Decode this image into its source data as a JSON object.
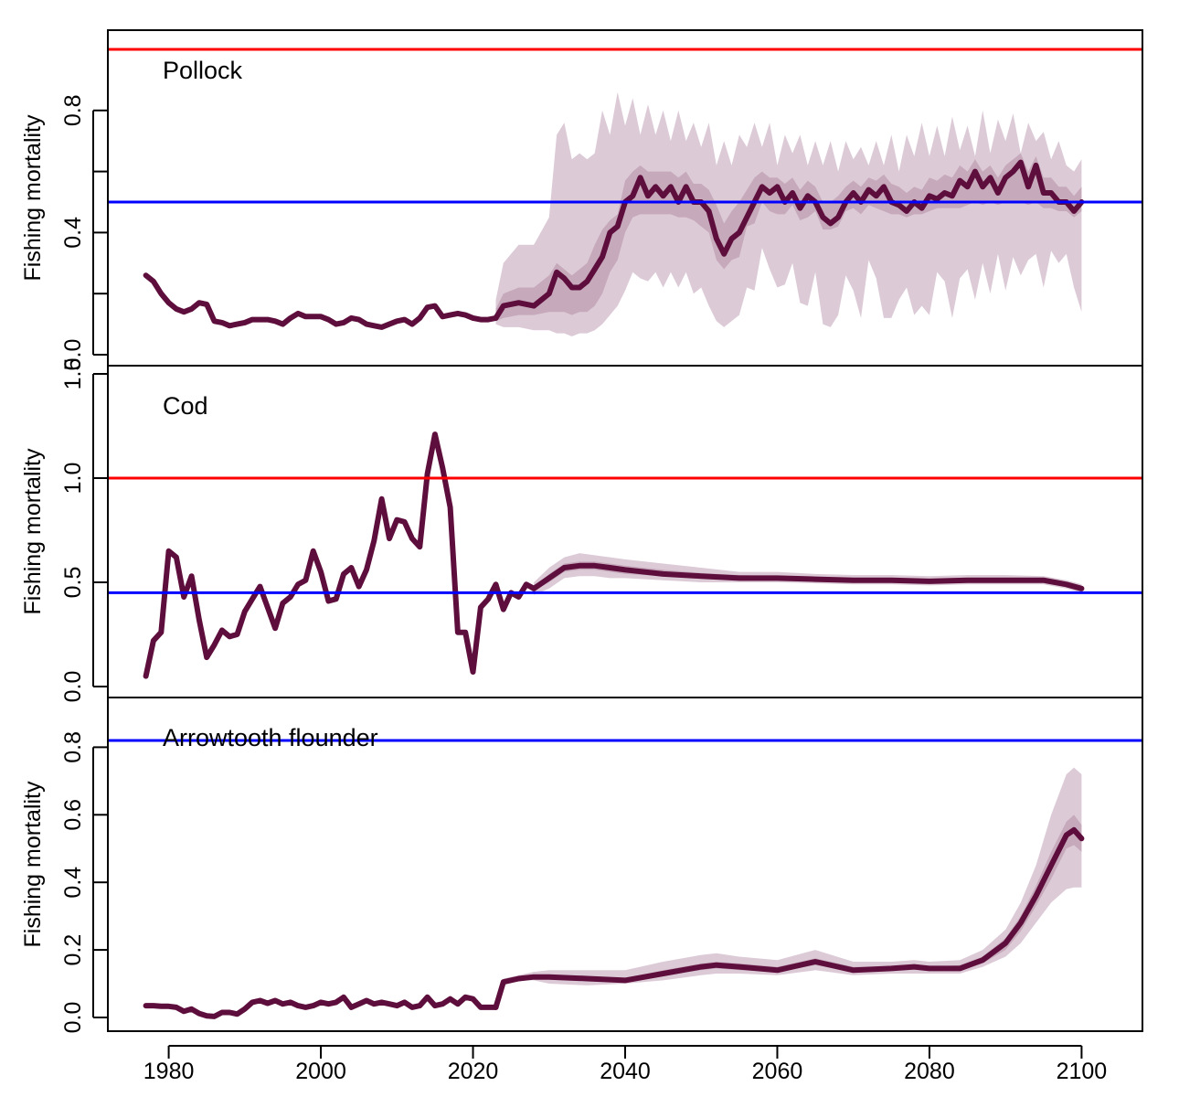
{
  "colors": {
    "median": "#5e0e3c",
    "band_outer": "#dccbd7",
    "band_mid": "#c7a9bc",
    "band_inner": "#9c6a86",
    "limit_red": "#ff0000",
    "limit_blue": "#0000ff"
  },
  "chart_data": [
    {
      "type": "line",
      "panel_label": "Pollock",
      "ylabel": "Fishing mortality",
      "ylim": [
        0.0,
        1.0
      ],
      "yticks": [
        0.0,
        0.2,
        0.4,
        0.6,
        0.8
      ],
      "ytick_labels": [
        "0.0",
        "",
        "0.4",
        "",
        "0.8"
      ],
      "hlines": [
        {
          "y": 1.0,
          "color": "red"
        },
        {
          "y": 0.5,
          "color": "blue"
        }
      ],
      "history": {
        "x": [
          1977,
          1978,
          1979,
          1980,
          1981,
          1982,
          1983,
          1984,
          1985,
          1986,
          1987,
          1988,
          1989,
          1990,
          1991,
          1992,
          1993,
          1994,
          1995,
          1996,
          1997,
          1998,
          1999,
          2000,
          2001,
          2002,
          2003,
          2004,
          2005,
          2006,
          2007,
          2008,
          2009,
          2010,
          2011,
          2012,
          2013,
          2014,
          2015,
          2016,
          2017,
          2018,
          2019,
          2020,
          2021,
          2022,
          2023
        ],
        "y": [
          0.26,
          0.24,
          0.2,
          0.17,
          0.15,
          0.14,
          0.15,
          0.17,
          0.165,
          0.11,
          0.105,
          0.095,
          0.1,
          0.105,
          0.115,
          0.115,
          0.115,
          0.11,
          0.1,
          0.12,
          0.135,
          0.125,
          0.125,
          0.125,
          0.115,
          0.1,
          0.105,
          0.12,
          0.115,
          0.1,
          0.095,
          0.09,
          0.1,
          0.11,
          0.115,
          0.1,
          0.12,
          0.155,
          0.16,
          0.125,
          0.13,
          0.135,
          0.13,
          0.12,
          0.115,
          0.115,
          0.12
        ]
      },
      "projection": {
        "x": [
          2023,
          2024,
          2026,
          2028,
          2030,
          2031,
          2032,
          2033,
          2034,
          2035,
          2036,
          2037,
          2038,
          2039,
          2040,
          2041,
          2042,
          2043,
          2044,
          2045,
          2046,
          2047,
          2048,
          2049,
          2050,
          2051,
          2052,
          2053,
          2054,
          2055,
          2056,
          2057,
          2058,
          2059,
          2060,
          2061,
          2062,
          2063,
          2064,
          2065,
          2066,
          2067,
          2068,
          2069,
          2070,
          2071,
          2072,
          2073,
          2074,
          2075,
          2076,
          2077,
          2078,
          2079,
          2080,
          2081,
          2082,
          2083,
          2084,
          2085,
          2086,
          2087,
          2088,
          2089,
          2090,
          2091,
          2092,
          2093,
          2094,
          2095,
          2096,
          2097,
          2098,
          2099,
          2100
        ],
        "median": [
          0.12,
          0.16,
          0.17,
          0.16,
          0.2,
          0.27,
          0.25,
          0.22,
          0.22,
          0.24,
          0.28,
          0.32,
          0.4,
          0.42,
          0.5,
          0.52,
          0.58,
          0.52,
          0.55,
          0.52,
          0.55,
          0.5,
          0.55,
          0.5,
          0.5,
          0.47,
          0.38,
          0.33,
          0.38,
          0.4,
          0.45,
          0.5,
          0.55,
          0.53,
          0.55,
          0.5,
          0.53,
          0.48,
          0.52,
          0.5,
          0.45,
          0.43,
          0.45,
          0.5,
          0.53,
          0.5,
          0.54,
          0.52,
          0.55,
          0.5,
          0.49,
          0.47,
          0.5,
          0.48,
          0.52,
          0.51,
          0.53,
          0.52,
          0.57,
          0.55,
          0.6,
          0.55,
          0.58,
          0.53,
          0.58,
          0.6,
          0.63,
          0.55,
          0.62,
          0.53,
          0.53,
          0.5,
          0.5,
          0.47,
          0.5
        ],
        "p25": [
          0.11,
          0.12,
          0.13,
          0.13,
          0.14,
          0.14,
          0.14,
          0.13,
          0.14,
          0.14,
          0.16,
          0.2,
          0.27,
          0.31,
          0.4,
          0.45,
          0.46,
          0.46,
          0.46,
          0.46,
          0.46,
          0.45,
          0.45,
          0.44,
          0.42,
          0.4,
          0.31,
          0.28,
          0.31,
          0.32,
          0.42,
          0.43,
          0.5,
          0.47,
          0.46,
          0.46,
          0.49,
          0.44,
          0.45,
          0.47,
          0.41,
          0.41,
          0.42,
          0.47,
          0.48,
          0.46,
          0.49,
          0.48,
          0.47,
          0.46,
          0.46,
          0.45,
          0.46,
          0.46,
          0.47,
          0.48,
          0.48,
          0.48,
          0.48,
          0.49,
          0.5,
          0.49,
          0.5,
          0.49,
          0.5,
          0.5,
          0.5,
          0.49,
          0.5,
          0.48,
          0.48,
          0.47,
          0.47,
          0.45,
          0.47
        ],
        "p75": [
          0.15,
          0.2,
          0.22,
          0.22,
          0.26,
          0.3,
          0.28,
          0.26,
          0.28,
          0.3,
          0.36,
          0.41,
          0.44,
          0.46,
          0.57,
          0.6,
          0.62,
          0.6,
          0.6,
          0.6,
          0.6,
          0.58,
          0.6,
          0.56,
          0.56,
          0.54,
          0.49,
          0.43,
          0.47,
          0.5,
          0.54,
          0.58,
          0.6,
          0.58,
          0.58,
          0.56,
          0.58,
          0.54,
          0.57,
          0.55,
          0.5,
          0.5,
          0.52,
          0.55,
          0.57,
          0.55,
          0.58,
          0.57,
          0.59,
          0.56,
          0.55,
          0.53,
          0.55,
          0.54,
          0.58,
          0.57,
          0.59,
          0.58,
          0.62,
          0.6,
          0.64,
          0.6,
          0.62,
          0.58,
          0.62,
          0.64,
          0.66,
          0.6,
          0.65,
          0.58,
          0.58,
          0.55,
          0.55,
          0.52,
          0.55
        ],
        "p05": [
          0.1,
          0.09,
          0.09,
          0.08,
          0.08,
          0.07,
          0.07,
          0.06,
          0.07,
          0.07,
          0.08,
          0.1,
          0.13,
          0.16,
          0.21,
          0.27,
          0.25,
          0.24,
          0.27,
          0.22,
          0.27,
          0.22,
          0.27,
          0.2,
          0.22,
          0.16,
          0.11,
          0.09,
          0.11,
          0.13,
          0.22,
          0.21,
          0.35,
          0.28,
          0.22,
          0.23,
          0.3,
          0.17,
          0.16,
          0.27,
          0.1,
          0.09,
          0.13,
          0.26,
          0.21,
          0.12,
          0.31,
          0.25,
          0.12,
          0.12,
          0.18,
          0.22,
          0.13,
          0.16,
          0.13,
          0.27,
          0.24,
          0.12,
          0.25,
          0.28,
          0.18,
          0.3,
          0.2,
          0.33,
          0.21,
          0.32,
          0.26,
          0.31,
          0.33,
          0.22,
          0.34,
          0.3,
          0.33,
          0.22,
          0.14
        ],
        "p95": [
          0.18,
          0.3,
          0.36,
          0.36,
          0.45,
          0.72,
          0.76,
          0.64,
          0.66,
          0.64,
          0.66,
          0.8,
          0.72,
          0.86,
          0.75,
          0.84,
          0.72,
          0.82,
          0.72,
          0.8,
          0.7,
          0.8,
          0.7,
          0.76,
          0.68,
          0.76,
          0.62,
          0.7,
          0.62,
          0.72,
          0.68,
          0.76,
          0.68,
          0.76,
          0.62,
          0.72,
          0.66,
          0.72,
          0.62,
          0.7,
          0.62,
          0.7,
          0.6,
          0.7,
          0.64,
          0.68,
          0.62,
          0.7,
          0.62,
          0.72,
          0.6,
          0.72,
          0.65,
          0.76,
          0.65,
          0.75,
          0.65,
          0.78,
          0.67,
          0.75,
          0.65,
          0.8,
          0.66,
          0.77,
          0.7,
          0.79,
          0.66,
          0.76,
          0.7,
          0.73,
          0.64,
          0.7,
          0.62,
          0.6,
          0.64
        ]
      }
    },
    {
      "type": "line",
      "panel_label": "Cod",
      "ylabel": "Fishing mortality",
      "ylim": [
        0.0,
        1.5
      ],
      "yticks": [
        0.0,
        0.5,
        1.0,
        1.5
      ],
      "ytick_labels": [
        "0.0",
        "0.5",
        "1.0",
        "1.5"
      ],
      "hlines": [
        {
          "y": 1.0,
          "color": "red"
        },
        {
          "y": 0.45,
          "color": "blue"
        }
      ],
      "history": {
        "x": [
          1977,
          1978,
          1979,
          1980,
          1981,
          1982,
          1983,
          1984,
          1985,
          1986,
          1987,
          1988,
          1989,
          1990,
          1991,
          1992,
          1993,
          1994,
          1995,
          1996,
          1997,
          1998,
          1999,
          2000,
          2001,
          2002,
          2003,
          2004,
          2005,
          2006,
          2007,
          2008,
          2009,
          2010,
          2011,
          2012,
          2013,
          2014,
          2015,
          2016,
          2017,
          2018,
          2019,
          2020,
          2021,
          2022,
          2023,
          2024,
          2025,
          2026,
          2027,
          2028
        ],
        "y": [
          0.05,
          0.22,
          0.26,
          0.65,
          0.62,
          0.43,
          0.53,
          0.32,
          0.14,
          0.2,
          0.27,
          0.24,
          0.25,
          0.36,
          0.42,
          0.48,
          0.38,
          0.28,
          0.4,
          0.43,
          0.49,
          0.51,
          0.65,
          0.55,
          0.41,
          0.42,
          0.54,
          0.57,
          0.48,
          0.56,
          0.7,
          0.9,
          0.71,
          0.8,
          0.79,
          0.71,
          0.67,
          1.02,
          1.21,
          1.05,
          0.86,
          0.26,
          0.26,
          0.07,
          0.38,
          0.42,
          0.49,
          0.37,
          0.45,
          0.43,
          0.49,
          0.47
        ]
      },
      "projection": {
        "x": [
          2028,
          2030,
          2032,
          2034,
          2036,
          2038,
          2040,
          2045,
          2050,
          2055,
          2060,
          2065,
          2070,
          2075,
          2080,
          2085,
          2090,
          2095,
          2098,
          2100
        ],
        "median": [
          0.47,
          0.52,
          0.57,
          0.58,
          0.58,
          0.57,
          0.56,
          0.54,
          0.53,
          0.52,
          0.52,
          0.515,
          0.51,
          0.51,
          0.505,
          0.51,
          0.51,
          0.51,
          0.49,
          0.47
        ],
        "p25": [
          0.46,
          0.5,
          0.55,
          0.56,
          0.56,
          0.55,
          0.54,
          0.53,
          0.52,
          0.51,
          0.51,
          0.505,
          0.5,
          0.5,
          0.495,
          0.5,
          0.5,
          0.5,
          0.48,
          0.46
        ],
        "p75": [
          0.48,
          0.54,
          0.59,
          0.6,
          0.6,
          0.59,
          0.58,
          0.56,
          0.545,
          0.535,
          0.53,
          0.525,
          0.52,
          0.52,
          0.515,
          0.52,
          0.52,
          0.52,
          0.5,
          0.48
        ],
        "p05": [
          0.44,
          0.47,
          0.52,
          0.53,
          0.53,
          0.52,
          0.52,
          0.51,
          0.5,
          0.5,
          0.5,
          0.495,
          0.49,
          0.49,
          0.485,
          0.49,
          0.49,
          0.49,
          0.47,
          0.45
        ],
        "p95": [
          0.5,
          0.57,
          0.62,
          0.64,
          0.63,
          0.62,
          0.61,
          0.59,
          0.57,
          0.55,
          0.55,
          0.54,
          0.535,
          0.535,
          0.53,
          0.535,
          0.535,
          0.53,
          0.51,
          0.49
        ]
      }
    },
    {
      "type": "line",
      "panel_label": "Arrowtooth flounder",
      "ylabel": "Fishing mortality",
      "ylim": [
        0.0,
        0.82
      ],
      "yticks": [
        0.0,
        0.2,
        0.4,
        0.6,
        0.8
      ],
      "ytick_labels": [
        "0.0",
        "0.2",
        "0.4",
        "0.6",
        "0.8"
      ],
      "hlines": [
        {
          "y": 0.82,
          "color": "blue"
        }
      ],
      "history": {
        "x": [
          1977,
          1978,
          1979,
          1980,
          1981,
          1982,
          1983,
          1984,
          1985,
          1986,
          1987,
          1988,
          1989,
          1990,
          1991,
          1992,
          1993,
          1994,
          1995,
          1996,
          1997,
          1998,
          1999,
          2000,
          2001,
          2002,
          2003,
          2004,
          2005,
          2006,
          2007,
          2008,
          2009,
          2010,
          2011,
          2012,
          2013,
          2014,
          2015,
          2016,
          2017,
          2018,
          2019,
          2020,
          2021,
          2022,
          2023
        ],
        "y": [
          0.035,
          0.035,
          0.033,
          0.033,
          0.03,
          0.018,
          0.025,
          0.012,
          0.005,
          0.003,
          0.015,
          0.015,
          0.01,
          0.025,
          0.045,
          0.05,
          0.042,
          0.05,
          0.04,
          0.045,
          0.035,
          0.03,
          0.035,
          0.045,
          0.04,
          0.045,
          0.06,
          0.03,
          0.04,
          0.05,
          0.04,
          0.045,
          0.04,
          0.035,
          0.045,
          0.03,
          0.035,
          0.06,
          0.035,
          0.04,
          0.055,
          0.04,
          0.06,
          0.055,
          0.03,
          0.03,
          0.03
        ]
      },
      "projection": {
        "x": [
          2023,
          2024,
          2026,
          2028,
          2030,
          2035,
          2040,
          2045,
          2050,
          2052,
          2055,
          2060,
          2065,
          2070,
          2075,
          2078,
          2080,
          2084,
          2087,
          2090,
          2092,
          2094,
          2096,
          2098,
          2099,
          2100
        ],
        "median": [
          0.03,
          0.105,
          0.115,
          0.12,
          0.12,
          0.115,
          0.11,
          0.13,
          0.15,
          0.155,
          0.15,
          0.14,
          0.165,
          0.14,
          0.145,
          0.15,
          0.145,
          0.145,
          0.17,
          0.22,
          0.28,
          0.36,
          0.45,
          0.54,
          0.555,
          0.53
        ],
        "p25": [
          0.03,
          0.1,
          0.11,
          0.115,
          0.115,
          0.11,
          0.105,
          0.125,
          0.14,
          0.145,
          0.14,
          0.135,
          0.155,
          0.135,
          0.14,
          0.145,
          0.14,
          0.14,
          0.16,
          0.2,
          0.255,
          0.33,
          0.41,
          0.5,
          0.51,
          0.49
        ],
        "p75": [
          0.03,
          0.11,
          0.12,
          0.125,
          0.125,
          0.12,
          0.115,
          0.14,
          0.16,
          0.165,
          0.16,
          0.15,
          0.175,
          0.15,
          0.15,
          0.155,
          0.15,
          0.155,
          0.18,
          0.235,
          0.3,
          0.39,
          0.49,
          0.58,
          0.6,
          0.57
        ],
        "p05": [
          0.03,
          0.1,
          0.11,
          0.11,
          0.1,
          0.095,
          0.1,
          0.11,
          0.125,
          0.13,
          0.13,
          0.125,
          0.14,
          0.125,
          0.13,
          0.13,
          0.13,
          0.13,
          0.15,
          0.18,
          0.22,
          0.28,
          0.34,
          0.38,
          0.385,
          0.385
        ],
        "p95": [
          0.03,
          0.115,
          0.125,
          0.135,
          0.14,
          0.14,
          0.14,
          0.165,
          0.185,
          0.19,
          0.18,
          0.17,
          0.2,
          0.165,
          0.165,
          0.17,
          0.165,
          0.17,
          0.2,
          0.26,
          0.34,
          0.45,
          0.6,
          0.72,
          0.74,
          0.72
        ]
      }
    }
  ],
  "x_axis": {
    "xlim": [
      1972,
      2108
    ],
    "ticks": [
      1980,
      2000,
      2020,
      2040,
      2060,
      2080,
      2100
    ],
    "tick_labels": [
      "1980",
      "2000",
      "2020",
      "2040",
      "2060",
      "2080",
      "2100"
    ]
  }
}
